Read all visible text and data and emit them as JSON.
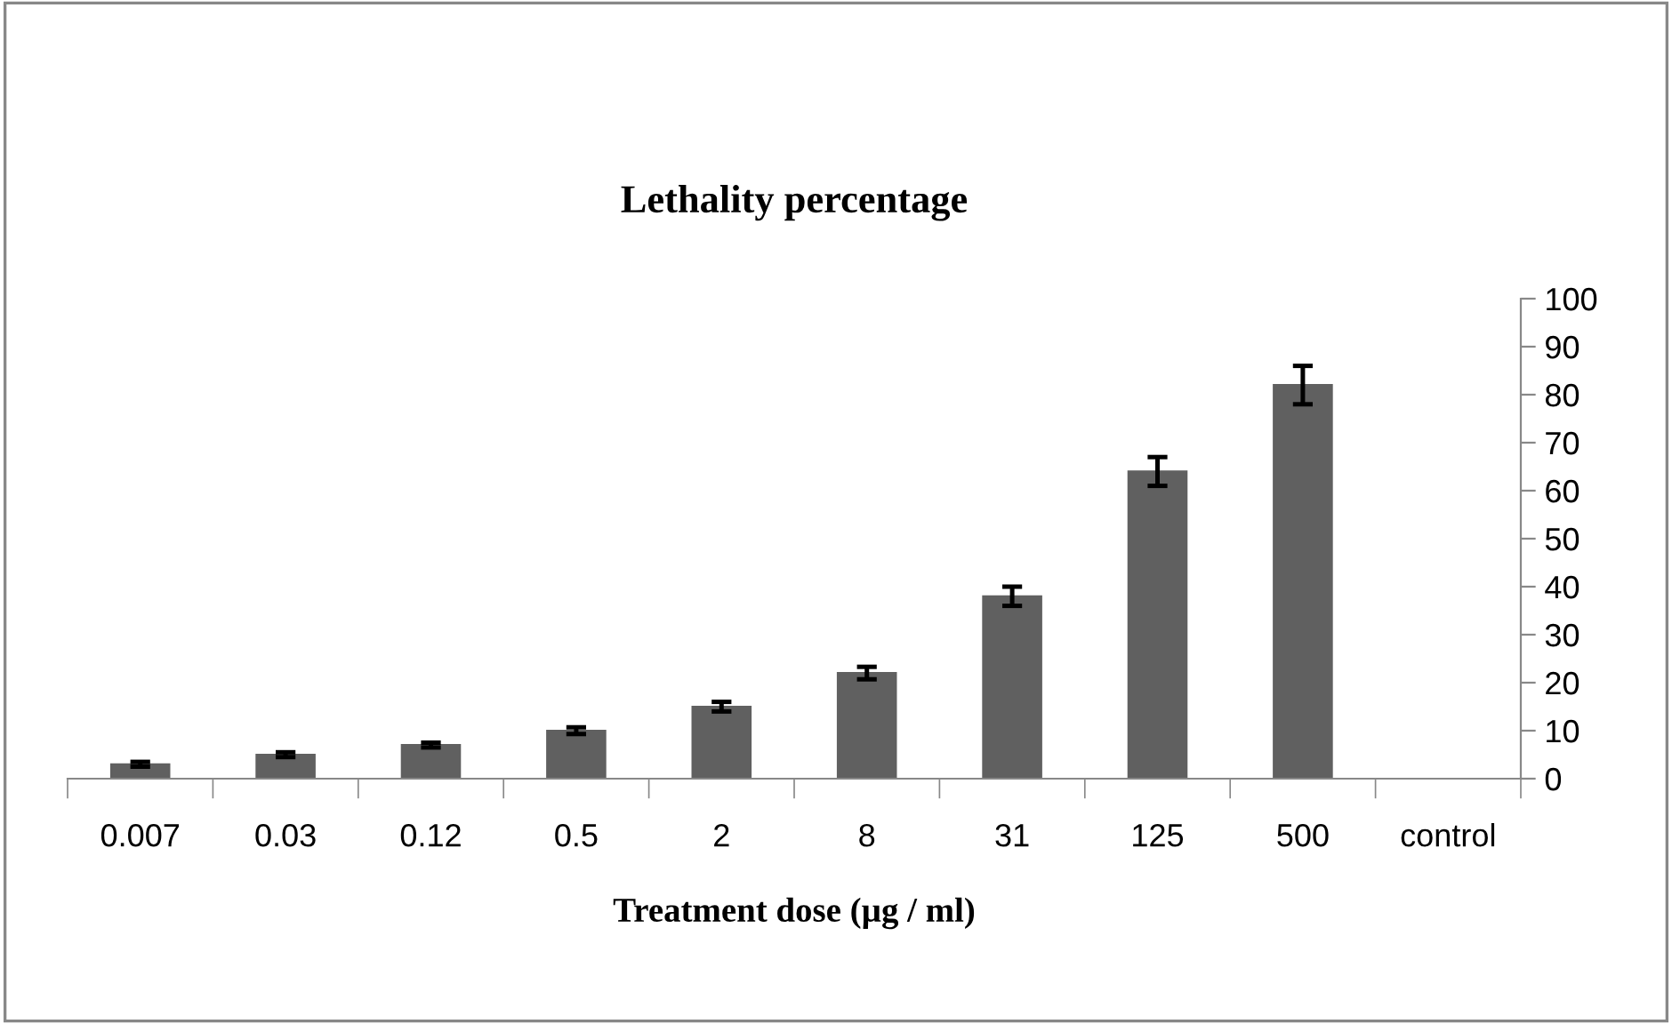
{
  "chart_data": {
    "type": "bar",
    "title": "Lethality percentage",
    "xlabel": "Treatment dose (µg / ml)",
    "categories": [
      "0.007",
      "0.03",
      "0.12",
      "0.5",
      "2",
      "8",
      "31",
      "125",
      "500",
      "control"
    ],
    "values": [
      3,
      5,
      7,
      10,
      15,
      22,
      38,
      64,
      82,
      0
    ],
    "errors": [
      0.5,
      0.5,
      0.5,
      0.7,
      1,
      1.3,
      2,
      3,
      4,
      null
    ],
    "color": "#606060",
    "ylim": [
      0,
      100
    ],
    "yticks": [
      0,
      10,
      20,
      30,
      40,
      50,
      60,
      70,
      80,
      90,
      100
    ],
    "grid": false,
    "legend": false
  }
}
